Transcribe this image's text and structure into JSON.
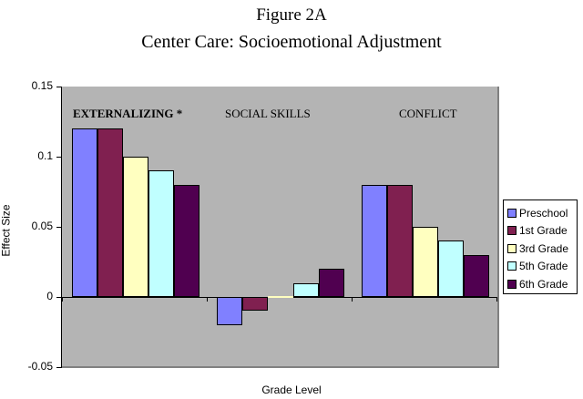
{
  "figure": {
    "number": "Figure 2A",
    "title": "Center Care: Socioemotional Adjustment"
  },
  "chart_data": {
    "type": "bar",
    "title": "Center Care: Socioemotional Adjustment",
    "subtitle": "Figure 2A",
    "xlabel": "Grade Level",
    "ylabel": "Effect Size",
    "ylim": [
      -0.05,
      0.15
    ],
    "yticks": [
      -0.05,
      0,
      0.05,
      0.1,
      0.15
    ],
    "ytick_labels": [
      "-0.05",
      "0",
      "0.05",
      "0.1",
      "0.15"
    ],
    "grid": false,
    "legend_position": "right",
    "categories": [
      "EXTERNALIZING *",
      "SOCIAL SKILLS",
      "CONFLICT"
    ],
    "series": [
      {
        "name": "Preschool",
        "color": "#8080ff",
        "values": [
          0.12,
          -0.02,
          0.08
        ]
      },
      {
        "name": "1st Grade",
        "color": "#802050",
        "values": [
          0.12,
          -0.01,
          0.08
        ]
      },
      {
        "name": "3rd Grade",
        "color": "#ffffc0",
        "values": [
          0.1,
          0.0,
          0.05
        ]
      },
      {
        "name": "5th Grade",
        "color": "#c0ffff",
        "values": [
          0.09,
          0.01,
          0.04
        ]
      },
      {
        "name": "6th Grade",
        "color": "#500050",
        "values": [
          0.08,
          0.02,
          0.03
        ]
      }
    ]
  },
  "plot_background": "#b4b4b4"
}
